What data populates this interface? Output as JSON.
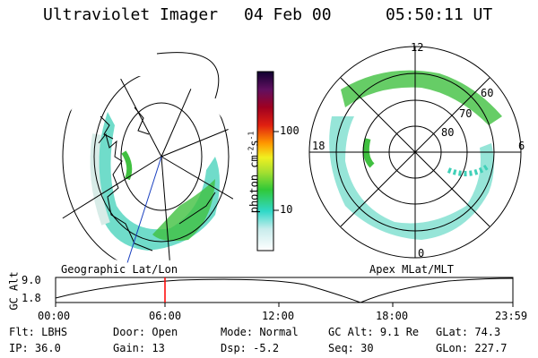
{
  "header": {
    "title": "Ultraviolet Imager",
    "date": "04 Feb 00",
    "time": "05:50:11 UT"
  },
  "colorbar": {
    "label": "photon cm",
    "exp1": "-2",
    "mid": "s",
    "exp2": "-1",
    "ticks": [
      "100",
      "10"
    ]
  },
  "geo_panel": {
    "label": "Geographic Lat/Lon"
  },
  "polar_panel": {
    "label": "Apex MLat/MLT",
    "mlt_labels": {
      "top": "12",
      "left": "18",
      "right": "6",
      "bottom": "0"
    },
    "mlat_labels": [
      "60",
      "70",
      "80"
    ]
  },
  "alt_plot": {
    "ylabel": "GC Alt",
    "yticks": [
      "9.0",
      "1.8"
    ],
    "xticks": [
      "00:00",
      "06:00",
      "12:00",
      "18:00",
      "23:59"
    ]
  },
  "info": {
    "row1": [
      {
        "label": "Flt:",
        "value": "LBHS"
      },
      {
        "label": "Door:",
        "value": "Open"
      },
      {
        "label": "Mode:",
        "value": "Normal"
      },
      {
        "label": "GC Alt:",
        "value": "9.1 Re"
      },
      {
        "label": "GLat:",
        "value": "74.3"
      }
    ],
    "row2": [
      {
        "label": "IP:",
        "value": "36.0"
      },
      {
        "label": "Gain:",
        "value": "13"
      },
      {
        "label": "Dsp:",
        "value": "-5.2"
      },
      {
        "label": "Seq:",
        "value": "30"
      },
      {
        "label": "GLon:",
        "value": "227.7"
      }
    ]
  },
  "colors": {
    "aurora_low": "#d8ece8",
    "aurora_mid": "#40d0b8",
    "aurora_high": "#40c040",
    "marker": "#ff0000"
  }
}
